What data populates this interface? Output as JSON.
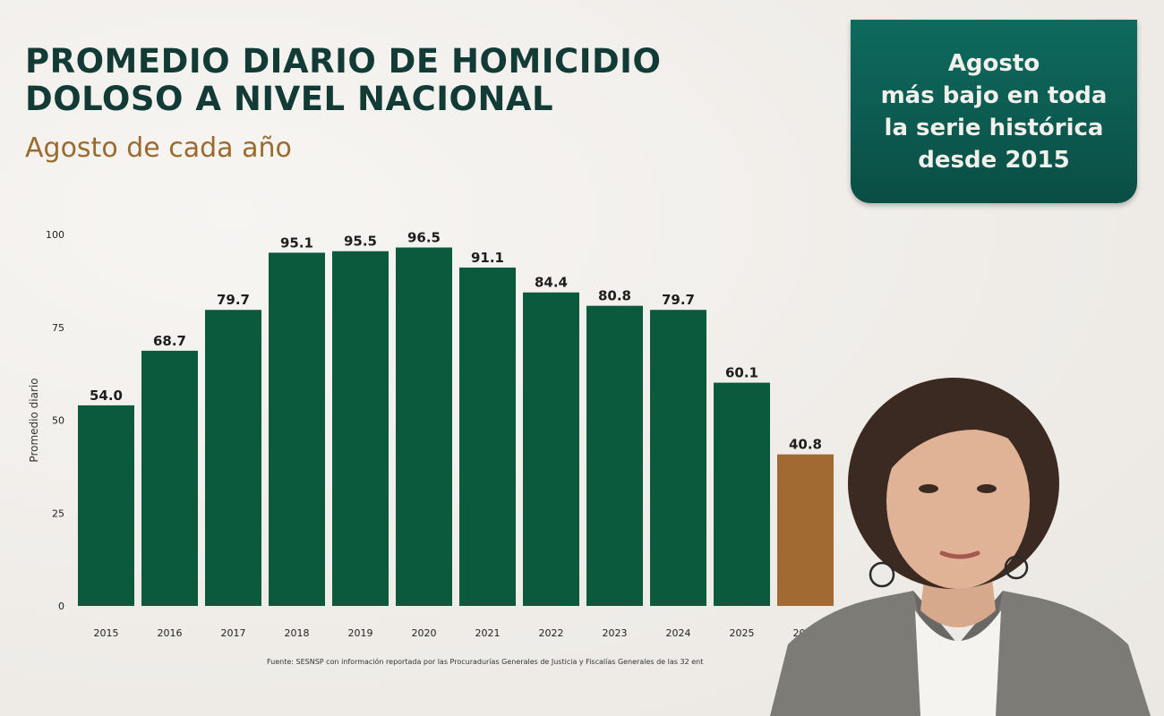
{
  "title_lines": [
    "PROMEDIO DIARIO DE HOMICIDIO",
    "DOLOSO A NIVEL NACIONAL"
  ],
  "subtitle": "Agosto de cada año",
  "callout_lines": [
    "Agosto",
    "más bajo en toda",
    "la serie histórica",
    "desde 2015"
  ],
  "source_note": "Fuente: SESNSP con información reportada por las Procuradurías Generales de Justicia y Fiscalías Generales de las 32 ent",
  "colors": {
    "bar_primary": "#0b5a3e",
    "bar_highlight": "#a06a32",
    "title": "#123b35",
    "subtitle": "#9a6a2e",
    "callout_bg": "#0b5b50"
  },
  "chart_data": {
    "type": "bar",
    "categories": [
      "2015",
      "2016",
      "2017",
      "2018",
      "2019",
      "2020",
      "2021",
      "2022",
      "2023",
      "2024",
      "2025",
      "2026"
    ],
    "values": [
      54.0,
      68.7,
      79.7,
      95.1,
      95.5,
      96.5,
      91.1,
      84.4,
      80.8,
      79.7,
      60.1,
      40.8
    ],
    "value_labels": [
      "54.0",
      "68.7",
      "79.7",
      "95.1",
      "95.5",
      "96.5",
      "91.1",
      "84.4",
      "80.8",
      "79.7",
      "60.1",
      "40.8"
    ],
    "highlight_index": 11,
    "ylabel": "Promedio diario",
    "ylim": [
      0,
      100
    ],
    "yticks": [
      0,
      25,
      50,
      75,
      100
    ],
    "grid": false
  }
}
